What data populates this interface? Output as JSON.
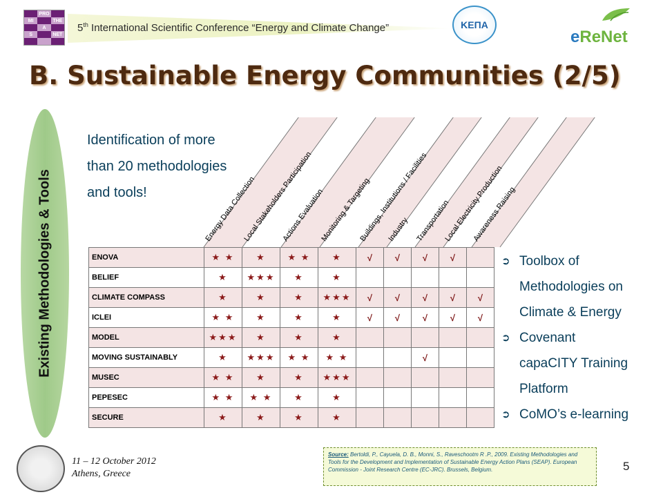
{
  "header": {
    "conference_title_prefix": "5",
    "conference_title_sup": "th",
    "conference_title_rest": " International Scientific Conference “Energy and Climate Change”",
    "logo_left_letters": [
      "PRO",
      "MI",
      "THE",
      "A",
      "S",
      "NET"
    ],
    "kepa_text": "ΚΕΠΑ",
    "erenet_e": "e",
    "erenet_rest": "ReNet"
  },
  "slide": {
    "title": "B. Sustainable Energy Communities (2/5)",
    "side_label": "Existing Methodologies & Tools",
    "intro_lines": [
      "Identification of more",
      "than 20 methodologies",
      "and tools!"
    ]
  },
  "columns": [
    "Energy Data Collection",
    "Local Stakeholders Participation",
    "Actions Evaluation",
    "Monitoring & Targeting",
    "Buildings, Institutions / Facilities",
    "Industry",
    "Transportation",
    "Local Electricity Production",
    "Awareness Raising"
  ],
  "rows": [
    {
      "name": "ENOVA",
      "cells": [
        "★ ★",
        "★",
        "★ ★",
        "★",
        "√",
        "√",
        "√",
        "√",
        ""
      ]
    },
    {
      "name": "BELIEF",
      "cells": [
        "★",
        "★★★",
        "★",
        "★",
        "",
        "",
        "",
        "",
        ""
      ]
    },
    {
      "name": "CLIMATE COMPASS",
      "cells": [
        "★",
        "★",
        "★",
        "★★★",
        "√",
        "√",
        "√",
        "√",
        "√"
      ]
    },
    {
      "name": "ICLEI",
      "cells": [
        "★ ★",
        "★",
        "★",
        "★",
        "√",
        "√",
        "√",
        "√",
        "√"
      ]
    },
    {
      "name": "MODEL",
      "cells": [
        "★★★",
        "★",
        "★",
        "★",
        "",
        "",
        "",
        "",
        ""
      ]
    },
    {
      "name": "MOVING SUSTAINABLY",
      "cells": [
        "★",
        "★★★",
        "★ ★",
        "★ ★",
        "",
        "",
        "√",
        "",
        ""
      ]
    },
    {
      "name": "MUSEC",
      "cells": [
        "★ ★",
        "★",
        "★",
        "★★★",
        "",
        "",
        "",
        "",
        ""
      ]
    },
    {
      "name": "PEPESEC",
      "cells": [
        "★ ★",
        "★ ★",
        "★",
        "★",
        "",
        "",
        "",
        "",
        ""
      ]
    },
    {
      "name": "SECURE",
      "cells": [
        "★",
        "★",
        "★",
        "★",
        "",
        "",
        "",
        "",
        ""
      ]
    }
  ],
  "bullets": [
    {
      "lines": [
        "Toolbox of",
        "Methodologies on",
        "Climate & Energy"
      ]
    },
    {
      "lines": [
        "Covenant",
        "capaCITY Training",
        "Platform"
      ]
    },
    {
      "lines": [
        "CoMO’s e-learning"
      ]
    }
  ],
  "footer": {
    "date_line1": "11 – 12 October 2012",
    "date_line2": "Athens, Greece",
    "source_label": "Source:",
    "source_text": " Bertoldi, P., Cayuela, D. B., Monni, S., Raveschootm R .P., 2009. Existing Methodologies and Tools for the Development and Implementation of Sustainable Energy Action Plans (SEAP). European Commission - Joint Research Centre (EC-JRC). Brussels, Belgium.",
    "page_number": "5"
  },
  "colors": {
    "title": "#4e2a10",
    "text_blue": "#0a3e5a",
    "star": "#8b1a1a",
    "row_shade": "#f4e4e4",
    "pill": "#9fca89"
  }
}
